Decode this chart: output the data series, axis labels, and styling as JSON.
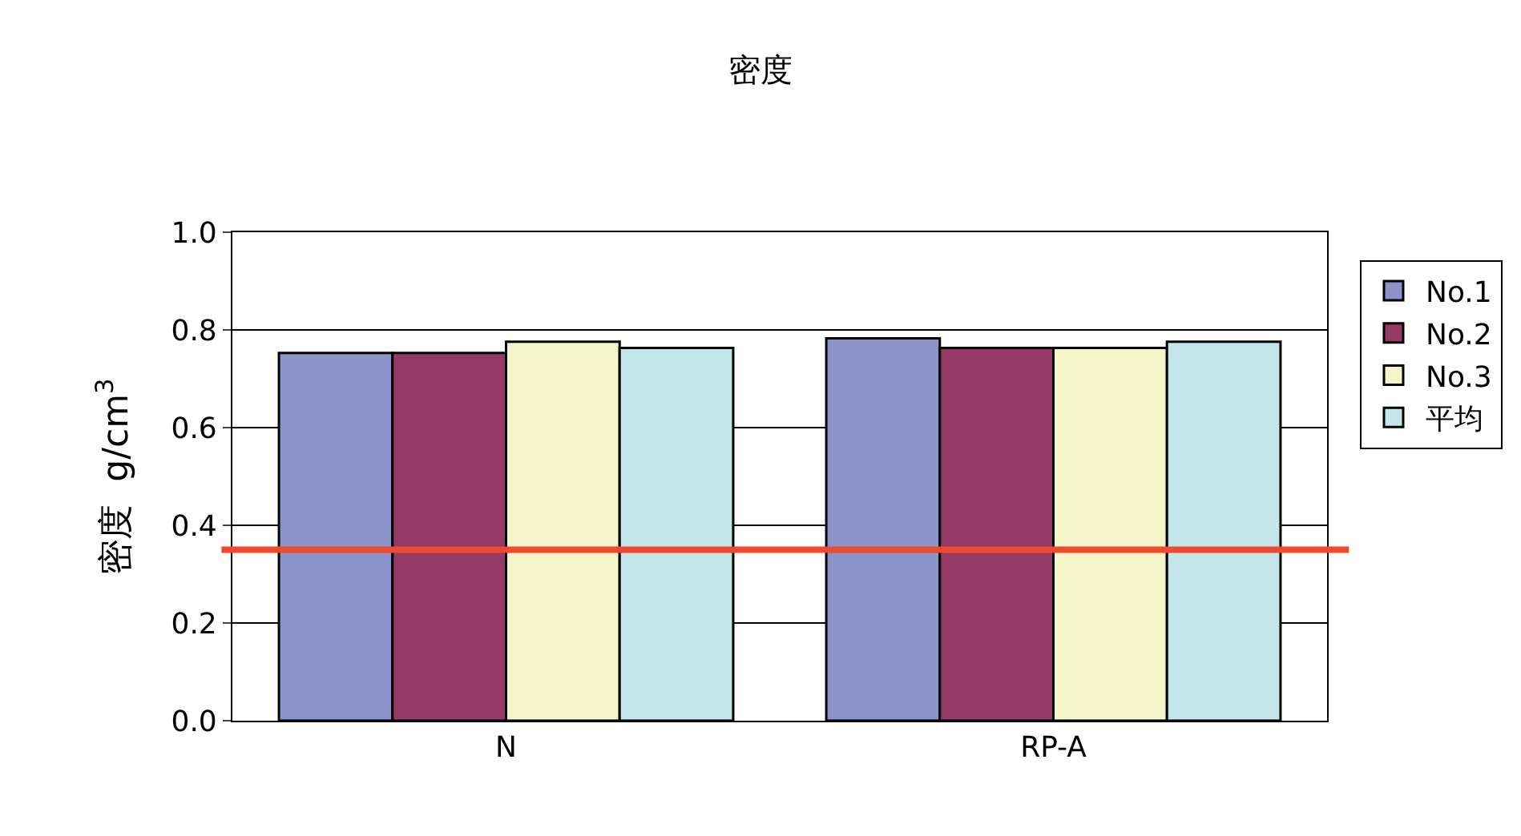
{
  "chart_data": {
    "type": "bar",
    "title": "密度",
    "ylabel": "密度  g/cm$^{3}$",
    "categories": [
      "N",
      "RP-A"
    ],
    "series": [
      {
        "name": "No.1",
        "color": "#8b93c8",
        "values": [
          0.753,
          0.783
        ]
      },
      {
        "name": "No.2",
        "color": "#953a66",
        "values": [
          0.753,
          0.763
        ]
      },
      {
        "name": "No.3",
        "color": "#f4f5c9",
        "values": [
          0.776,
          0.763
        ]
      },
      {
        "name": "平均",
        "color": "#c3e6ea",
        "values": [
          0.763,
          0.776
        ]
      }
    ],
    "ylim": [
      0,
      1.0
    ],
    "yticks": [
      {
        "value": 0,
        "label": "0.0"
      },
      0.2,
      0.4,
      0.6,
      0.8,
      {
        "value": 1.0,
        "label": "1.0"
      }
    ],
    "ref_lines": [
      {
        "axis": "y",
        "value": 0.35,
        "color": "#f04a2e"
      }
    ],
    "grid": "y",
    "legend": "right"
  }
}
